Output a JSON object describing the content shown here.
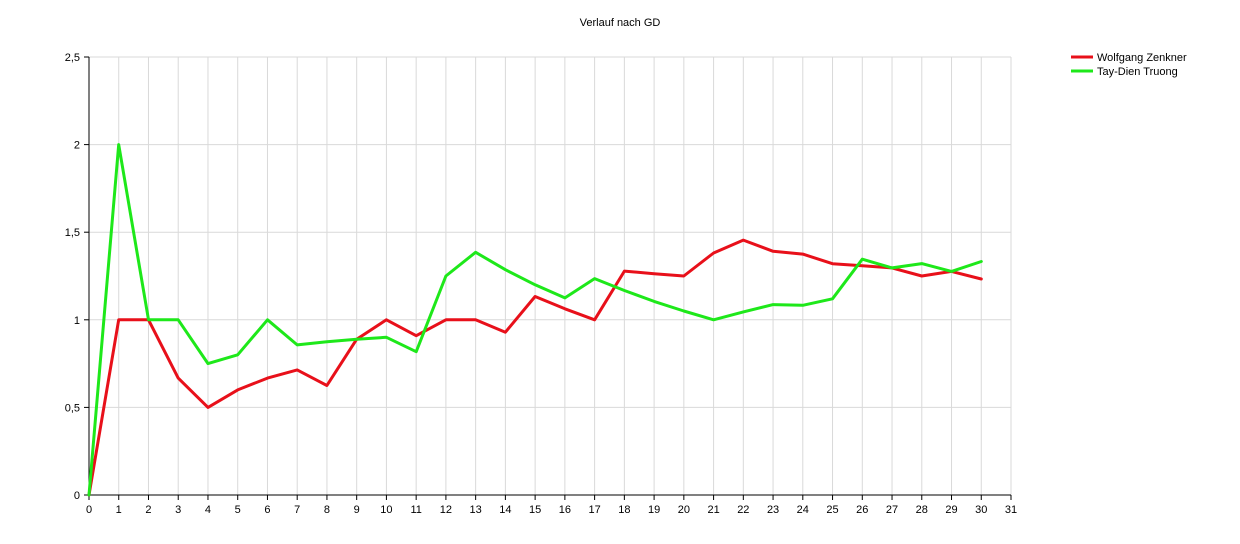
{
  "chart_data": {
    "type": "line",
    "title": "Verlauf nach GD",
    "xlabel": "",
    "ylabel": "",
    "xlim": [
      0,
      31
    ],
    "ylim": [
      0,
      2.5
    ],
    "x_ticks": [
      0,
      1,
      2,
      3,
      4,
      5,
      6,
      7,
      8,
      9,
      10,
      11,
      12,
      13,
      14,
      15,
      16,
      17,
      18,
      19,
      20,
      21,
      22,
      23,
      24,
      25,
      26,
      27,
      28,
      29,
      30,
      31
    ],
    "y_ticks": [
      0,
      0.5,
      1,
      1.5,
      2,
      2.5
    ],
    "y_tick_labels": [
      "0",
      "0,5",
      "1",
      "1,5",
      "2",
      "2,5"
    ],
    "grid": true,
    "legend_position": "top-right",
    "series": [
      {
        "name": "Wolfgang Zenkner",
        "color": "#e8101a",
        "x": [
          0,
          1,
          2,
          3,
          4,
          5,
          6,
          7,
          8,
          9,
          10,
          11,
          12,
          13,
          14,
          15,
          16,
          17,
          18,
          19,
          20,
          21,
          22,
          23,
          24,
          25,
          26,
          27,
          28,
          29,
          30
        ],
        "values": [
          0,
          1.0,
          1.0,
          0.667,
          0.5,
          0.6,
          0.667,
          0.714,
          0.625,
          0.889,
          1.0,
          0.909,
          1.0,
          1.0,
          0.929,
          1.133,
          1.063,
          1.0,
          1.278,
          1.263,
          1.25,
          1.381,
          1.455,
          1.391,
          1.375,
          1.32,
          1.308,
          1.296,
          1.25,
          1.276,
          1.233
        ]
      },
      {
        "name": "Tay-Dien Truong",
        "color": "#1ee81a",
        "x": [
          0,
          1,
          2,
          3,
          4,
          5,
          6,
          7,
          8,
          9,
          10,
          11,
          12,
          13,
          14,
          15,
          16,
          17,
          18,
          19,
          20,
          21,
          22,
          23,
          24,
          25,
          26,
          27,
          28,
          29,
          30
        ],
        "values": [
          0,
          2.0,
          1.0,
          1.0,
          0.75,
          0.8,
          1.0,
          0.857,
          0.875,
          0.889,
          0.9,
          0.818,
          1.25,
          1.385,
          1.286,
          1.2,
          1.125,
          1.235,
          1.167,
          1.105,
          1.05,
          1.0,
          1.045,
          1.087,
          1.083,
          1.12,
          1.346,
          1.296,
          1.321,
          1.276,
          1.333
        ]
      }
    ]
  }
}
